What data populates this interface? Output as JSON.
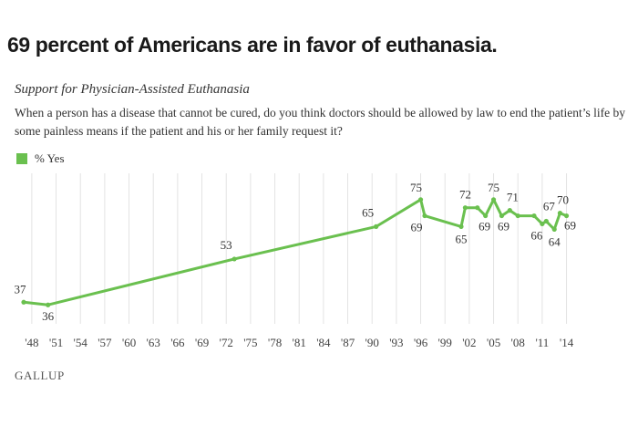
{
  "headline": "69 percent of Americans are in favor of euthanasia.",
  "chart_data": {
    "type": "line",
    "title": "Support for Physician-Assisted Euthanasia",
    "subtitle": "When a person has a disease that cannot be cured, do you think doctors should be allowed by law to end the patient’s life by some painless means if the patient and his or her family request it?",
    "series": [
      {
        "name": "% Yes",
        "color": "#6ac04f",
        "points": [
          {
            "x": 1947.0,
            "y": 37,
            "label": "37"
          },
          {
            "x": 1950.0,
            "y": 36,
            "label": "36"
          },
          {
            "x": 1973.0,
            "y": 53,
            "label": "53"
          },
          {
            "x": 1990.5,
            "y": 65,
            "label": "65"
          },
          {
            "x": 1996.0,
            "y": 75,
            "label": "75"
          },
          {
            "x": 1996.5,
            "y": 69,
            "label": "69"
          },
          {
            "x": 2001.0,
            "y": 65,
            "label": "65"
          },
          {
            "x": 2001.5,
            "y": 72,
            "label": "72"
          },
          {
            "x": 2003.0,
            "y": 72,
            "label": ""
          },
          {
            "x": 2004.0,
            "y": 69,
            "label": "69"
          },
          {
            "x": 2005.0,
            "y": 75,
            "label": "75"
          },
          {
            "x": 2006.0,
            "y": 69,
            "label": "69"
          },
          {
            "x": 2007.0,
            "y": 71,
            "label": "71"
          },
          {
            "x": 2008.0,
            "y": 69,
            "label": ""
          },
          {
            "x": 2010.0,
            "y": 69,
            "label": ""
          },
          {
            "x": 2011.0,
            "y": 66,
            "label": "66"
          },
          {
            "x": 2011.5,
            "y": 67,
            "label": "67"
          },
          {
            "x": 2012.5,
            "y": 64,
            "label": "64"
          },
          {
            "x": 2013.2,
            "y": 70,
            "label": "70"
          },
          {
            "x": 2014.0,
            "y": 69,
            "label": "69"
          }
        ]
      }
    ],
    "xticks": [
      {
        "x": 1948,
        "label": "'48"
      },
      {
        "x": 1951,
        "label": "'51"
      },
      {
        "x": 1954,
        "label": "'54"
      },
      {
        "x": 1957,
        "label": "'57"
      },
      {
        "x": 1960,
        "label": "'60"
      },
      {
        "x": 1963,
        "label": "'63"
      },
      {
        "x": 1966,
        "label": "'66"
      },
      {
        "x": 1969,
        "label": "'69"
      },
      {
        "x": 1972,
        "label": "'72"
      },
      {
        "x": 1975,
        "label": "'75"
      },
      {
        "x": 1978,
        "label": "'78"
      },
      {
        "x": 1981,
        "label": "'81"
      },
      {
        "x": 1984,
        "label": "'84"
      },
      {
        "x": 1987,
        "label": "'87"
      },
      {
        "x": 1990,
        "label": "'90"
      },
      {
        "x": 1993,
        "label": "'93"
      },
      {
        "x": 1996,
        "label": "'96"
      },
      {
        "x": 1999,
        "label": "'99"
      },
      {
        "x": 2002,
        "label": "'02"
      },
      {
        "x": 2005,
        "label": "'05"
      },
      {
        "x": 2008,
        "label": "'08"
      },
      {
        "x": 2011,
        "label": "'11"
      },
      {
        "x": 2014,
        "label": "'14"
      }
    ],
    "xlim": [
      1947,
      2014.5
    ],
    "ylim": [
      30,
      80
    ],
    "grid": "vertical",
    "legend": "top-left"
  },
  "source": "GALLUP"
}
